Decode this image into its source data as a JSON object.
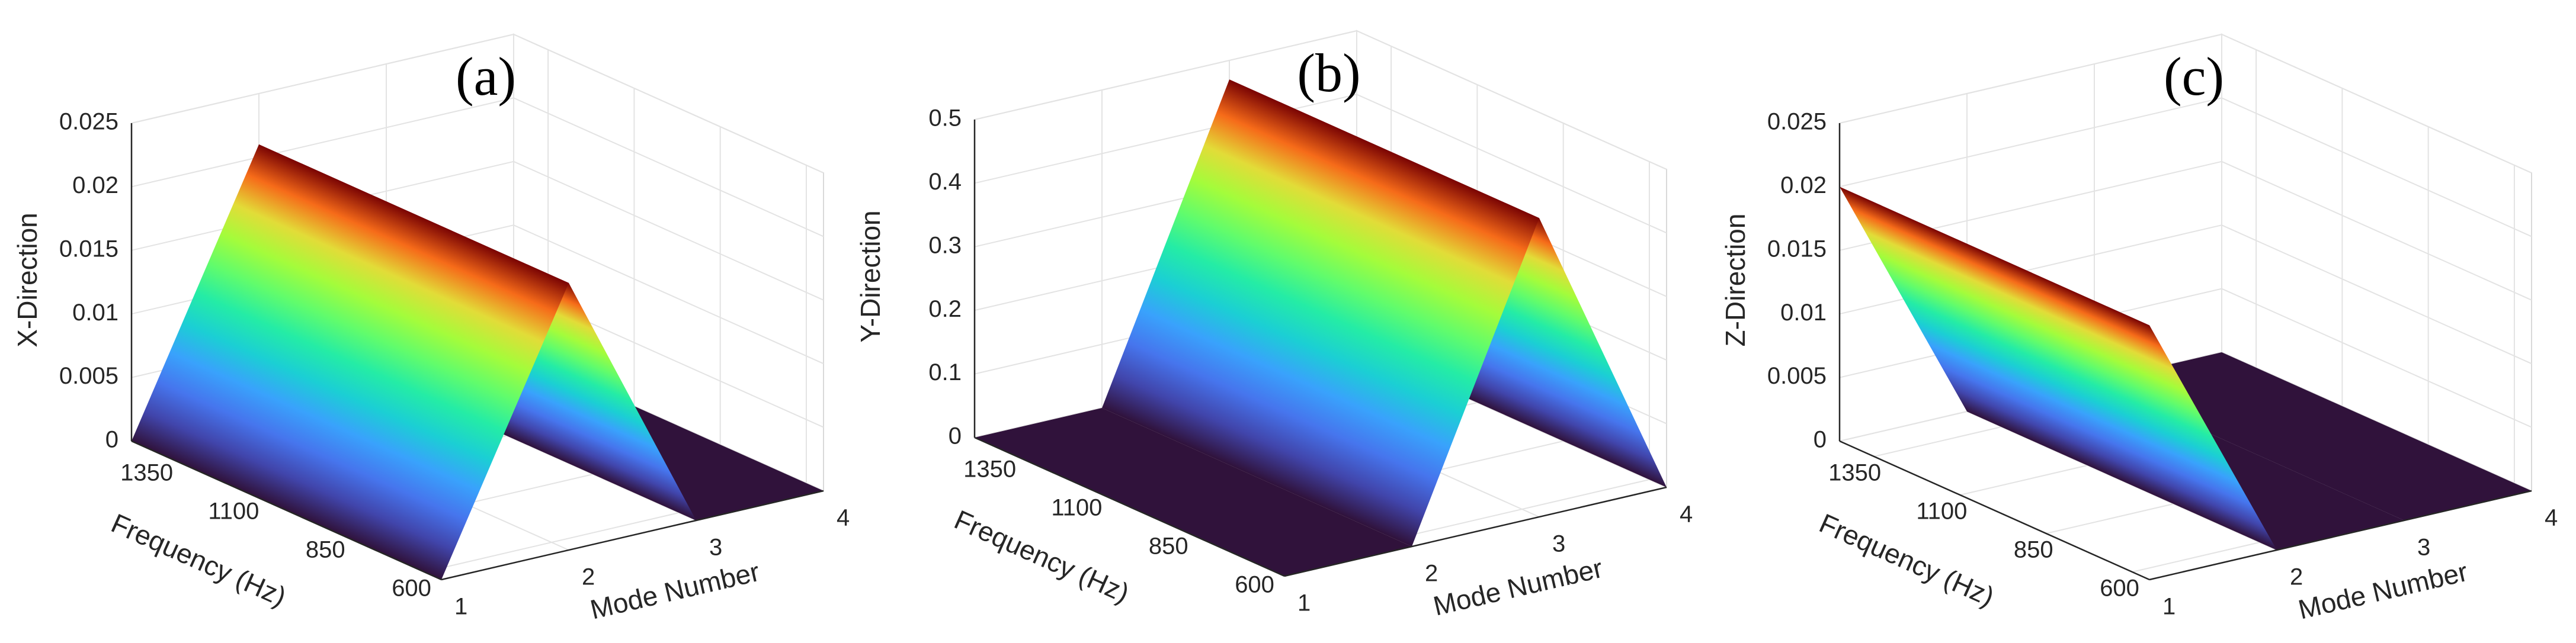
{
  "chart_data": [
    {
      "type": "surface",
      "label": "(a)",
      "zlabel": "X-Direction",
      "xlabel": "Mode Number",
      "ylabel": "Frequency (Hz)",
      "x": [
        1,
        2,
        3,
        4
      ],
      "values": [
        0,
        0.021,
        0,
        0
      ],
      "xlim": [
        1,
        4
      ],
      "xticks": [
        1,
        2,
        3,
        4
      ],
      "ylim": [
        550,
        1450
      ],
      "yticks": [
        600,
        850,
        1100,
        1350
      ],
      "zlim": [
        0,
        0.025
      ],
      "zticks": [
        0,
        0.005,
        0.01,
        0.015,
        0.02,
        0.025
      ],
      "grid": true
    },
    {
      "type": "surface",
      "label": "(b)",
      "zlabel": "Y-Direction",
      "xlabel": "Mode Number",
      "ylabel": "Frequency (Hz)",
      "x": [
        1,
        2,
        3,
        4
      ],
      "values": [
        0,
        0,
        0.47,
        0
      ],
      "xlim": [
        1,
        4
      ],
      "xticks": [
        1,
        2,
        3,
        4
      ],
      "ylim": [
        550,
        1450
      ],
      "yticks": [
        600,
        850,
        1100,
        1350
      ],
      "zlim": [
        0,
        0.5
      ],
      "zticks": [
        0,
        0.1,
        0.2,
        0.3,
        0.4,
        0.5
      ],
      "grid": true
    },
    {
      "type": "surface",
      "label": "(c)",
      "zlabel": "Z-Direction",
      "xlabel": "Mode Number",
      "ylabel": "Frequency (Hz)",
      "x": [
        1,
        2,
        3,
        4
      ],
      "values": [
        0.02,
        0,
        0,
        0
      ],
      "xlim": [
        1,
        4
      ],
      "xticks": [
        1,
        2,
        3,
        4
      ],
      "ylim": [
        550,
        1450
      ],
      "yticks": [
        600,
        850,
        1100,
        1350
      ],
      "zlim": [
        0,
        0.025
      ],
      "zticks": [
        0,
        0.005,
        0.01,
        0.015,
        0.02,
        0.025
      ],
      "grid": true
    }
  ]
}
